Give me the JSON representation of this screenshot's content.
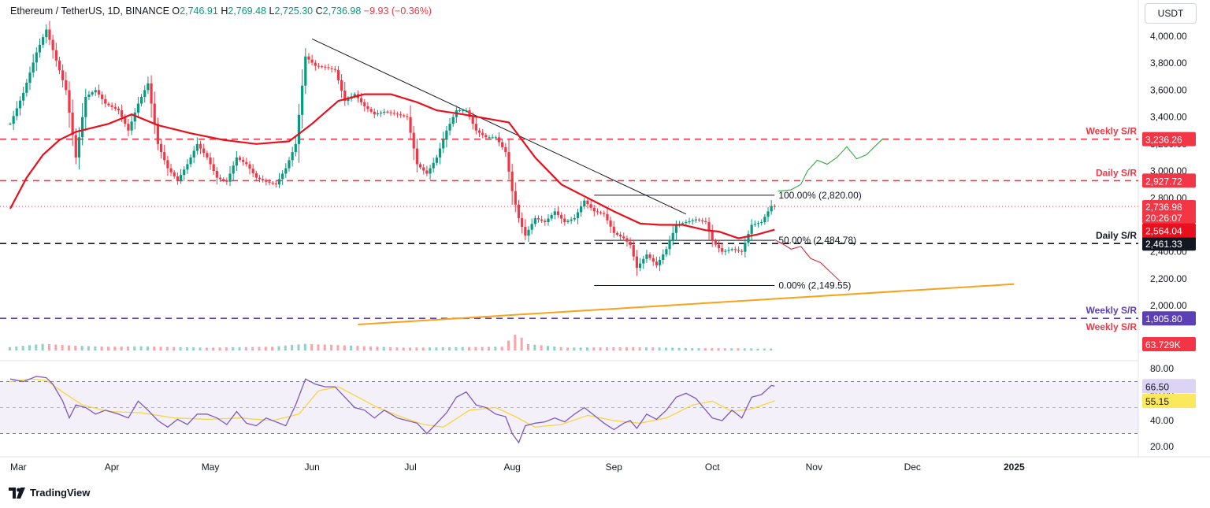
{
  "header": {
    "title": "Ethereum / TetherUS, 1D, BINANCE",
    "o_label": "O",
    "o_value": "2,746.91",
    "h_label": "H",
    "h_value": "2,769.48",
    "l_label": "L",
    "l_value": "2,725.30",
    "c_label": "C",
    "c_value": "2,736.98",
    "change": "−9.93 (−0.36%)"
  },
  "currency_button": "USDT",
  "branding": "TradingView",
  "chart_data": {
    "type": "candlestick",
    "y_ticks": [
      4000,
      3800,
      3600,
      3400,
      3200,
      3000,
      2800,
      2600,
      2400,
      2200,
      2000
    ],
    "y_tick_labels": [
      "4,000.00",
      "3,800.00",
      "3,600.00",
      "3,400.00",
      "3,200.00",
      "3,000.00",
      "2,800.00",
      "2,600.00",
      "2,400.00",
      "2,200.00",
      "2,000.00"
    ],
    "x_labels": [
      {
        "label": "Mar",
        "day": 0
      },
      {
        "label": "Apr",
        "day": 31
      },
      {
        "label": "May",
        "day": 61
      },
      {
        "label": "Jun",
        "day": 92
      },
      {
        "label": "Jul",
        "day": 122
      },
      {
        "label": "Aug",
        "day": 153
      },
      {
        "label": "Sep",
        "day": 184
      },
      {
        "label": "Oct",
        "day": 214
      },
      {
        "label": "Nov",
        "day": 245
      },
      {
        "label": "Dec",
        "day": 275
      },
      {
        "label": "2025",
        "day": 306
      }
    ],
    "last_day": 233,
    "close_series": [
      [
        0,
        3350
      ],
      [
        4,
        3580
      ],
      [
        8,
        3880
      ],
      [
        11,
        4050
      ],
      [
        14,
        3820
      ],
      [
        17,
        3600
      ],
      [
        20,
        3100
      ],
      [
        23,
        3550
      ],
      [
        26,
        3600
      ],
      [
        29,
        3500
      ],
      [
        33,
        3450
      ],
      [
        36,
        3300
      ],
      [
        39,
        3500
      ],
      [
        42,
        3650
      ],
      [
        45,
        3200
      ],
      [
        48,
        3020
      ],
      [
        51,
        2930
      ],
      [
        54,
        3050
      ],
      [
        57,
        3200
      ],
      [
        60,
        3100
      ],
      [
        63,
        2950
      ],
      [
        66,
        2920
      ],
      [
        69,
        3100
      ],
      [
        72,
        3050
      ],
      [
        75,
        2950
      ],
      [
        78,
        2920
      ],
      [
        81,
        2900
      ],
      [
        84,
        3020
      ],
      [
        87,
        3200
      ],
      [
        90,
        3850
      ],
      [
        93,
        3780
      ],
      [
        96,
        3770
      ],
      [
        99,
        3750
      ],
      [
        102,
        3520
      ],
      [
        105,
        3570
      ],
      [
        108,
        3480
      ],
      [
        111,
        3420
      ],
      [
        114,
        3440
      ],
      [
        118,
        3420
      ],
      [
        121,
        3400
      ],
      [
        124,
        3050
      ],
      [
        127,
        2980
      ],
      [
        130,
        3100
      ],
      [
        133,
        3300
      ],
      [
        136,
        3450
      ],
      [
        139,
        3450
      ],
      [
        142,
        3300
      ],
      [
        145,
        3250
      ],
      [
        148,
        3250
      ],
      [
        151,
        3140
      ],
      [
        153,
        2850
      ],
      [
        155,
        2650
      ],
      [
        157,
        2520
      ],
      [
        160,
        2650
      ],
      [
        163,
        2620
      ],
      [
        166,
        2700
      ],
      [
        169,
        2620
      ],
      [
        172,
        2650
      ],
      [
        175,
        2780
      ],
      [
        178,
        2700
      ],
      [
        181,
        2680
      ],
      [
        184,
        2540
      ],
      [
        187,
        2500
      ],
      [
        189,
        2450
      ],
      [
        191,
        2280
      ],
      [
        194,
        2380
      ],
      [
        197,
        2300
      ],
      [
        200,
        2420
      ],
      [
        203,
        2600
      ],
      [
        206,
        2620
      ],
      [
        209,
        2640
      ],
      [
        212,
        2620
      ],
      [
        214,
        2480
      ],
      [
        217,
        2400
      ],
      [
        220,
        2420
      ],
      [
        223,
        2400
      ],
      [
        226,
        2600
      ],
      [
        229,
        2620
      ],
      [
        232,
        2740
      ],
      [
        233,
        2736.98
      ]
    ],
    "volume_series": [
      [
        0,
        0.18
      ],
      [
        10,
        0.35
      ],
      [
        20,
        0.25
      ],
      [
        30,
        0.2
      ],
      [
        40,
        0.22
      ],
      [
        60,
        0.15
      ],
      [
        80,
        0.2
      ],
      [
        90,
        0.35
      ],
      [
        120,
        0.15
      ],
      [
        150,
        0.2
      ],
      [
        155,
        1.0
      ],
      [
        157,
        0.35
      ],
      [
        170,
        0.15
      ],
      [
        190,
        0.18
      ],
      [
        210,
        0.12
      ],
      [
        233,
        0.1
      ]
    ],
    "ma_series": {
      "name": "",
      "color": "#e8101d",
      "values": [
        [
          0,
          2720
        ],
        [
          5,
          2950
        ],
        [
          10,
          3120
        ],
        [
          15,
          3230
        ],
        [
          20,
          3290
        ],
        [
          30,
          3350
        ],
        [
          37,
          3420
        ],
        [
          45,
          3340
        ],
        [
          55,
          3280
        ],
        [
          65,
          3230
        ],
        [
          75,
          3200
        ],
        [
          85,
          3220
        ],
        [
          92,
          3350
        ],
        [
          100,
          3520
        ],
        [
          108,
          3570
        ],
        [
          116,
          3570
        ],
        [
          124,
          3510
        ],
        [
          130,
          3450
        ],
        [
          138,
          3420
        ],
        [
          145,
          3390
        ],
        [
          152,
          3360
        ],
        [
          160,
          3100
        ],
        [
          168,
          2900
        ],
        [
          176,
          2800
        ],
        [
          184,
          2700
        ],
        [
          192,
          2610
        ],
        [
          198,
          2600
        ],
        [
          205,
          2600
        ],
        [
          212,
          2560
        ],
        [
          216,
          2550
        ],
        [
          222,
          2500
        ],
        [
          228,
          2530
        ],
        [
          233,
          2564.04
        ]
      ]
    },
    "trendline": {
      "from": [
        92,
        3980
      ],
      "to": [
        206,
        2680
      ]
    },
    "support_line": {
      "from": [
        106,
        1860
      ],
      "to": [
        306,
        2160
      ]
    },
    "levels": [
      {
        "name": "Weekly S/R",
        "value": 3236.26,
        "label": "3,236.26",
        "color": "#f23645",
        "style": "dashed"
      },
      {
        "name": "Daily S/R",
        "value": 2927.72,
        "label": "2,927.72",
        "color": "#f23645",
        "style": "dashed"
      },
      {
        "name": "Daily S/R",
        "value": 2461.33,
        "label": "2,461.33",
        "color": "#131722",
        "style": "dashed"
      },
      {
        "name": "Weekly S/R",
        "value": 1905.8,
        "label": "1,905.80",
        "color": "#5b3fb4",
        "style": "dashed"
      }
    ],
    "overflow_label": "Weekly S/R",
    "fib": [
      {
        "label": "100.00% (2,820.00)",
        "value": 2820.0
      },
      {
        "label": "50.00% (2,484.78)",
        "value": 2484.78
      },
      {
        "label": "0.00% (2,149.55)",
        "value": 2149.55
      }
    ],
    "fib_range": [
      178,
      233
    ],
    "current_price": {
      "label": "2,736.98",
      "countdown": "20:26:07",
      "value": 2736.98
    },
    "ma_price": {
      "label": "2,564.04",
      "value": 2564.04
    },
    "volume_label": "63.729K",
    "projection_green": [
      [
        234,
        2850
      ],
      [
        238,
        2860
      ],
      [
        241,
        2900
      ],
      [
        243,
        3000
      ],
      [
        246,
        3080
      ],
      [
        249,
        3050
      ],
      [
        252,
        3100
      ],
      [
        255,
        3180
      ],
      [
        258,
        3090
      ],
      [
        261,
        3120
      ],
      [
        263,
        3170
      ],
      [
        266,
        3240
      ]
    ],
    "projection_red": [
      [
        233,
        2490
      ],
      [
        236,
        2450
      ],
      [
        238,
        2420
      ],
      [
        241,
        2440
      ],
      [
        244,
        2350
      ],
      [
        247,
        2320
      ],
      [
        250,
        2250
      ],
      [
        253,
        2180
      ]
    ],
    "rsi": {
      "ticks": [
        80,
        60,
        40,
        20
      ],
      "tick_labels": [
        "80.00",
        "60.00",
        "40.00",
        "20.00"
      ],
      "band": [
        70,
        30
      ],
      "middle": 50,
      "last_value": "66.50",
      "ma_value": "55.15",
      "values": [
        [
          0,
          72
        ],
        [
          4,
          70
        ],
        [
          8,
          74
        ],
        [
          11,
          73
        ],
        [
          13,
          68
        ],
        [
          16,
          55
        ],
        [
          18,
          42
        ],
        [
          20,
          52
        ],
        [
          23,
          50
        ],
        [
          26,
          45
        ],
        [
          29,
          48
        ],
        [
          33,
          45
        ],
        [
          36,
          42
        ],
        [
          39,
          55
        ],
        [
          42,
          48
        ],
        [
          45,
          40
        ],
        [
          48,
          35
        ],
        [
          51,
          41
        ],
        [
          54,
          37
        ],
        [
          57,
          45
        ],
        [
          60,
          45
        ],
        [
          63,
          42
        ],
        [
          66,
          37
        ],
        [
          69,
          47
        ],
        [
          72,
          38
        ],
        [
          75,
          36
        ],
        [
          78,
          42
        ],
        [
          81,
          39
        ],
        [
          84,
          36
        ],
        [
          87,
          52
        ],
        [
          90,
          72
        ],
        [
          93,
          68
        ],
        [
          96,
          66
        ],
        [
          99,
          66
        ],
        [
          102,
          58
        ],
        [
          105,
          50
        ],
        [
          108,
          48
        ],
        [
          111,
          42
        ],
        [
          114,
          48
        ],
        [
          118,
          42
        ],
        [
          121,
          40
        ],
        [
          124,
          38
        ],
        [
          127,
          30
        ],
        [
          130,
          38
        ],
        [
          133,
          46
        ],
        [
          136,
          58
        ],
        [
          139,
          62
        ],
        [
          142,
          52
        ],
        [
          145,
          50
        ],
        [
          148,
          45
        ],
        [
          151,
          43
        ],
        [
          153,
          30
        ],
        [
          155,
          23
        ],
        [
          157,
          36
        ],
        [
          160,
          38
        ],
        [
          163,
          39
        ],
        [
          166,
          42
        ],
        [
          169,
          39
        ],
        [
          172,
          45
        ],
        [
          175,
          50
        ],
        [
          178,
          44
        ],
        [
          181,
          38
        ],
        [
          184,
          33
        ],
        [
          187,
          38
        ],
        [
          189,
          40
        ],
        [
          191,
          34
        ],
        [
          194,
          45
        ],
        [
          197,
          41
        ],
        [
          200,
          48
        ],
        [
          203,
          58
        ],
        [
          206,
          61
        ],
        [
          209,
          57
        ],
        [
          212,
          48
        ],
        [
          214,
          42
        ],
        [
          217,
          40
        ],
        [
          220,
          48
        ],
        [
          223,
          42
        ],
        [
          226,
          58
        ],
        [
          229,
          60
        ],
        [
          232,
          67
        ],
        [
          233,
          66.5
        ]
      ],
      "ma_values": [
        [
          0,
          70
        ],
        [
          6,
          72
        ],
        [
          11,
          71
        ],
        [
          16,
          62
        ],
        [
          22,
          52
        ],
        [
          30,
          47
        ],
        [
          40,
          46
        ],
        [
          50,
          42
        ],
        [
          60,
          41
        ],
        [
          70,
          42
        ],
        [
          80,
          40
        ],
        [
          88,
          45
        ],
        [
          94,
          63
        ],
        [
          100,
          66
        ],
        [
          106,
          58
        ],
        [
          112,
          50
        ],
        [
          118,
          44
        ],
        [
          126,
          37
        ],
        [
          132,
          35
        ],
        [
          140,
          48
        ],
        [
          148,
          50
        ],
        [
          154,
          43
        ],
        [
          160,
          35
        ],
        [
          168,
          37
        ],
        [
          176,
          44
        ],
        [
          184,
          40
        ],
        [
          192,
          38
        ],
        [
          200,
          42
        ],
        [
          208,
          52
        ],
        [
          214,
          55
        ],
        [
          220,
          47
        ],
        [
          226,
          49
        ],
        [
          233,
          55.15
        ]
      ]
    }
  }
}
